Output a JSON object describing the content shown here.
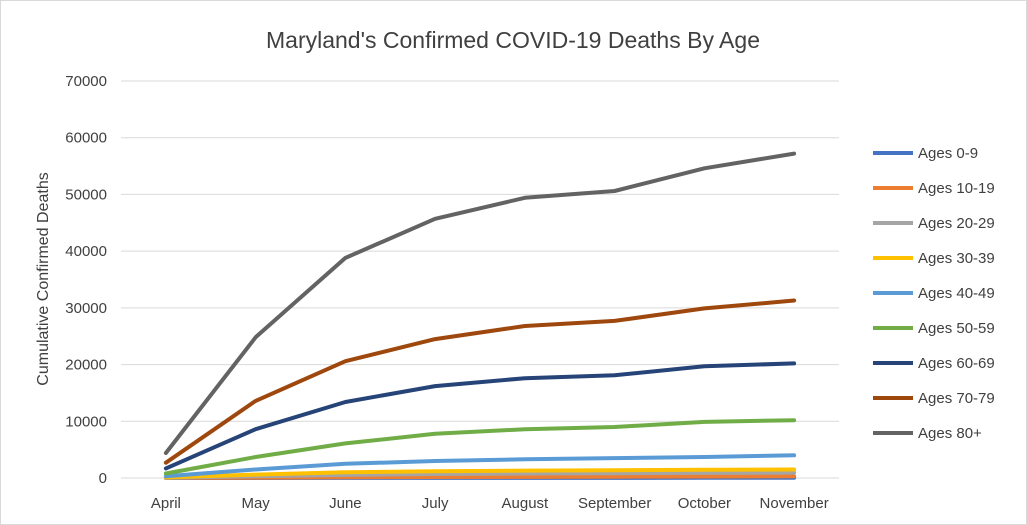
{
  "chart_data": {
    "type": "line",
    "title": "Maryland's Confirmed COVID-19 Deaths By Age",
    "ylabel": "Cumulative Confirmed Deaths",
    "xlabel": "",
    "categories": [
      "April",
      "May",
      "June",
      "July",
      "August",
      "September",
      "October",
      "November"
    ],
    "ylim": [
      0,
      70000
    ],
    "yticks": [
      0,
      10000,
      20000,
      30000,
      40000,
      50000,
      60000,
      70000
    ],
    "grid": true,
    "legend_position": "right",
    "series": [
      {
        "name": "Ages 0-9",
        "color": "#4472c4",
        "values": [
          0,
          5,
          10,
          15,
          20,
          25,
          30,
          35
        ]
      },
      {
        "name": "Ages 10-19",
        "color": "#ed7d31",
        "values": [
          10,
          60,
          120,
          170,
          200,
          230,
          260,
          300
        ]
      },
      {
        "name": "Ages 20-29",
        "color": "#a5a5a5",
        "values": [
          50,
          300,
          550,
          700,
          800,
          850,
          900,
          950
        ]
      },
      {
        "name": "Ages 30-39",
        "color": "#ffc000",
        "values": [
          100,
          600,
          1000,
          1200,
          1300,
          1350,
          1450,
          1500
        ]
      },
      {
        "name": "Ages 40-49",
        "color": "#5b9bd5",
        "values": [
          300,
          1500,
          2500,
          3000,
          3300,
          3500,
          3700,
          4000
        ]
      },
      {
        "name": "Ages 50-59",
        "color": "#70ad47",
        "values": [
          800,
          3700,
          6100,
          7800,
          8600,
          9000,
          9900,
          10200
        ]
      },
      {
        "name": "Ages 60-69",
        "color": "#264478",
        "values": [
          1700,
          8600,
          13400,
          16200,
          17600,
          18100,
          19700,
          20200
        ]
      },
      {
        "name": "Ages 70-79",
        "color": "#9e480e",
        "values": [
          2700,
          13600,
          20600,
          24500,
          26800,
          27700,
          29900,
          31300
        ]
      },
      {
        "name": "Ages 80+",
        "color": "#636363",
        "values": [
          4400,
          24800,
          38800,
          45700,
          49400,
          50600,
          54600,
          57200
        ]
      }
    ]
  }
}
